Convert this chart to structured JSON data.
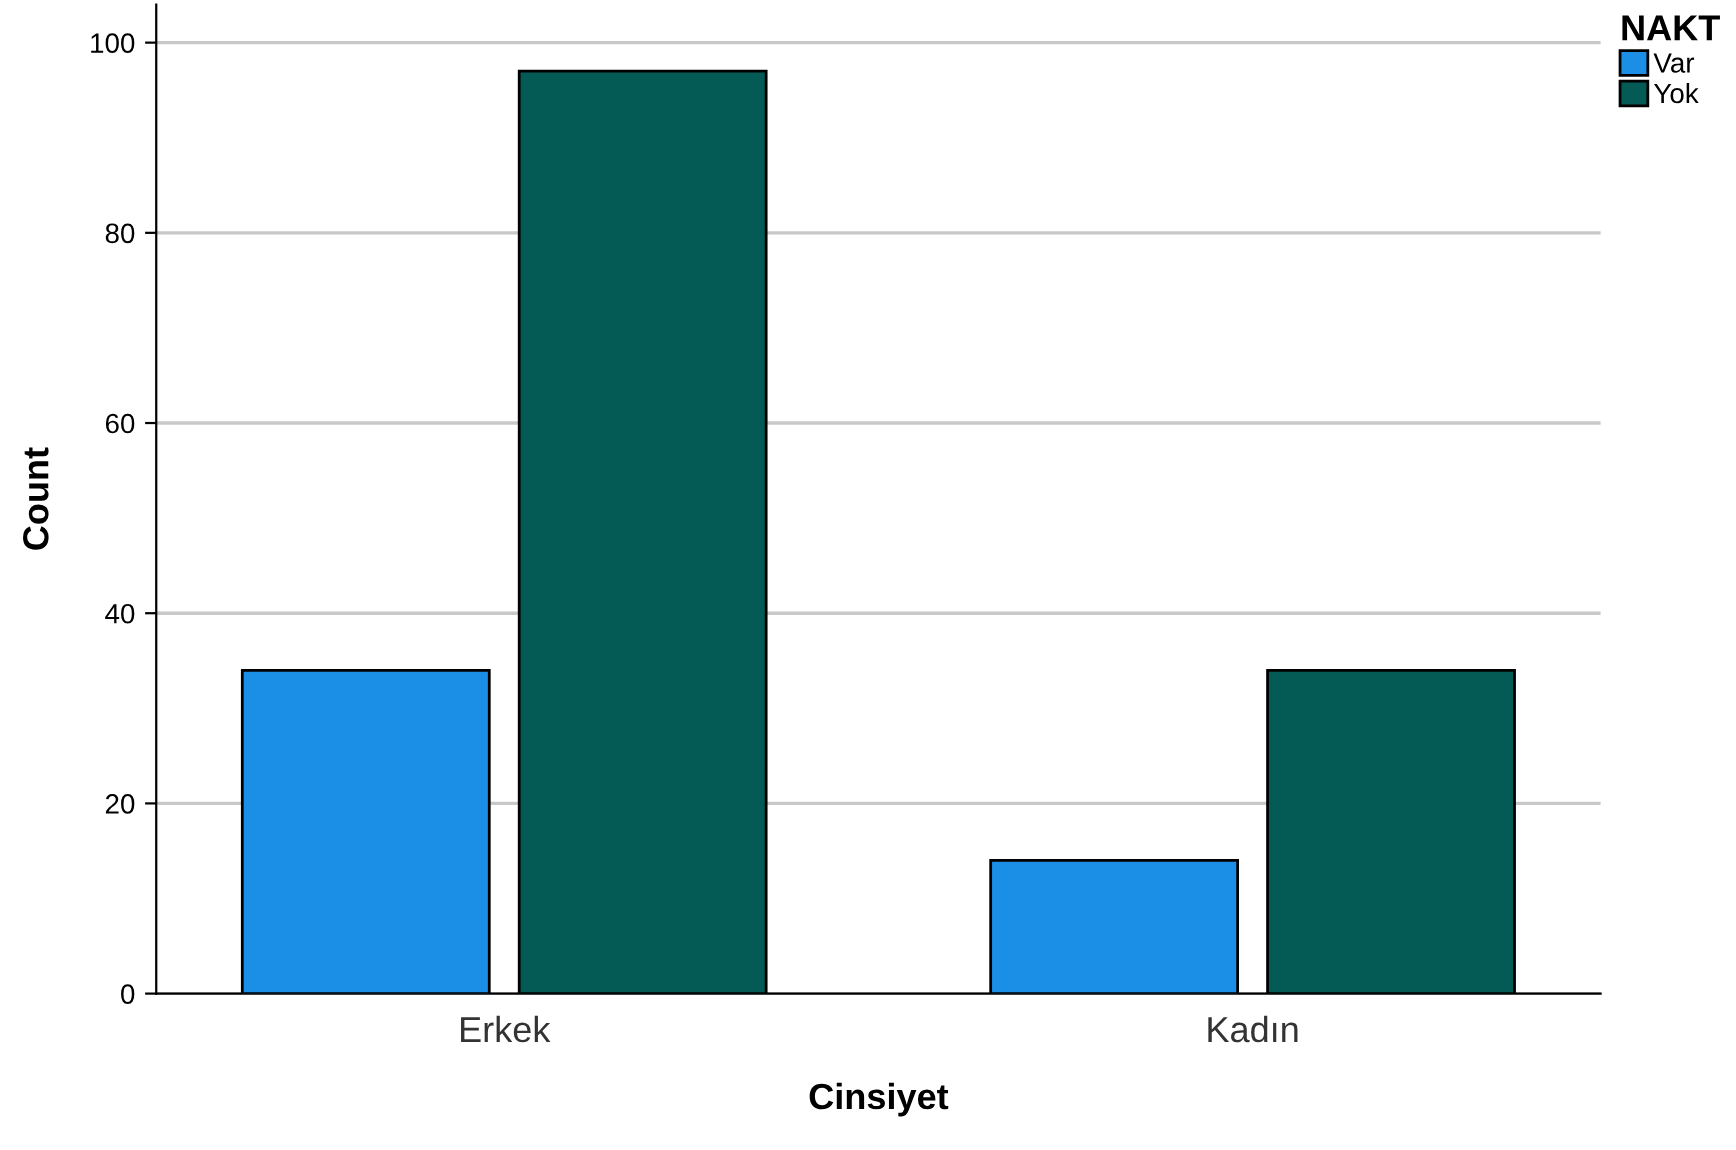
{
  "chart_data": {
    "type": "bar",
    "xlabel": "Cinsiyet",
    "ylabel": "Count",
    "legend_title": "NAKT",
    "categories": [
      "Erkek",
      "Kadın"
    ],
    "series": [
      {
        "name": "Var",
        "color": "#1b8fe6",
        "values": [
          34,
          14
        ]
      },
      {
        "name": "Yok",
        "color": "#045a55",
        "values": [
          97,
          34
        ]
      }
    ],
    "ylim": [
      0,
      104
    ],
    "yticks": [
      0,
      20,
      40,
      60,
      80,
      100
    ],
    "grid": "y",
    "legend": "top right"
  }
}
